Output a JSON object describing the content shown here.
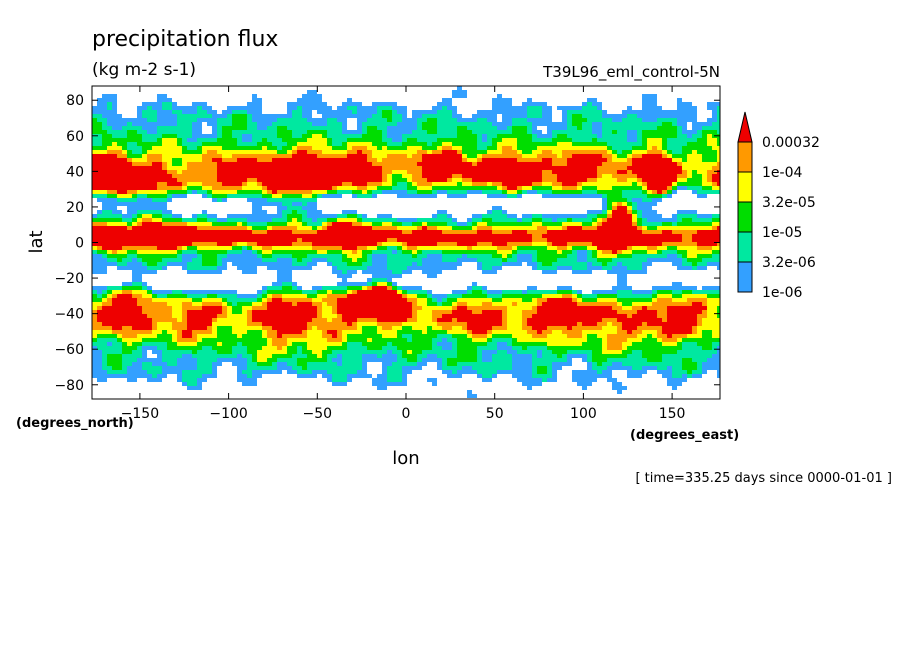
{
  "chart_data": {
    "type": "heatmap",
    "title": "precipitation flux",
    "units": "(kg m-2 s-1)",
    "experiment": "T39L96_eml_control-5N",
    "xlabel": "lon",
    "ylabel": "lat",
    "x_units": "(degrees_east)",
    "y_units": "(degrees_north)",
    "time_label": "[ time=335.25 days since 0000-01-01 ]",
    "xlim": [
      -177,
      177
    ],
    "ylim": [
      -88,
      88
    ],
    "x_ticks": [
      -150,
      -100,
      -50,
      0,
      50,
      100,
      150
    ],
    "x_tick_labels": [
      "−150",
      "−100",
      "−50",
      "0",
      "50",
      "100",
      "150"
    ],
    "y_ticks": [
      80,
      60,
      40,
      20,
      0,
      -20,
      -40,
      -60,
      -80
    ],
    "y_tick_labels": [
      "80",
      "60",
      "40",
      "20",
      "0",
      "−20",
      "−40",
      "−60",
      "−80"
    ],
    "levels": [
      1e-06,
      3.2e-06,
      1e-05,
      3.2e-05,
      0.0001,
      0.00032
    ],
    "level_labels": [
      "1e-06",
      "3.2e-06",
      "1e-05",
      "3.2e-05",
      "1e-04",
      "0.00032"
    ],
    "colors": [
      "#ffffff",
      "#33a0ff",
      "#00e8a0",
      "#00dd00",
      "#ffff00",
      "#ff9900",
      "#ee0000"
    ],
    "grid": false,
    "legend": "right"
  }
}
